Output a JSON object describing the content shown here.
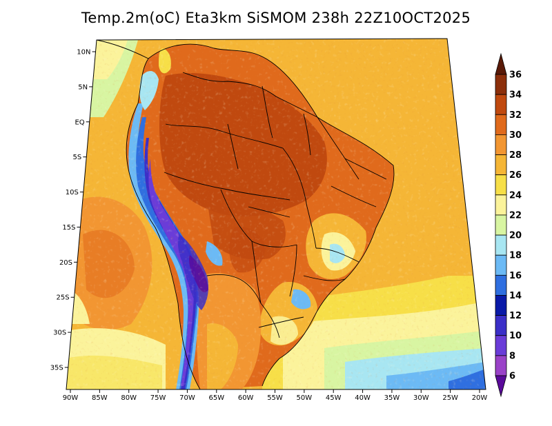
{
  "title": "Temp.2m(oC) Eta3km SiSMOM 238h 22Z10OCT2025",
  "map": {
    "variable": "2m temperature",
    "units": "oC",
    "lon_labels": [
      "90W",
      "85W",
      "80W",
      "75W",
      "70W",
      "65W",
      "60W",
      "55W",
      "50W",
      "45W",
      "40W",
      "35W",
      "30W",
      "25W",
      "20W"
    ],
    "lat_labels": [
      "10N",
      "5N",
      "EQ",
      "5S",
      "10S",
      "15S",
      "20S",
      "25S",
      "30S",
      "35S"
    ]
  },
  "colorbar": {
    "labels": [
      "36",
      "34",
      "32",
      "30",
      "28",
      "26",
      "24",
      "22",
      "20",
      "18",
      "16",
      "14",
      "12",
      "10",
      "8",
      "6"
    ],
    "colors": [
      "#5a1a08",
      "#8c2f0b",
      "#c0490f",
      "#e06a1c",
      "#f29632",
      "#f5b636",
      "#f7df48",
      "#fbf39b",
      "#d8f5a2",
      "#a8e6f2",
      "#6cbaf5",
      "#2f6fe0",
      "#0a1aa8",
      "#3b2fc8",
      "#6a3cd8",
      "#9a42c8",
      "#5a0a9a"
    ],
    "top_arrow_color": "#5a1a08",
    "bottom_arrow_color": "#5a0a9a"
  }
}
